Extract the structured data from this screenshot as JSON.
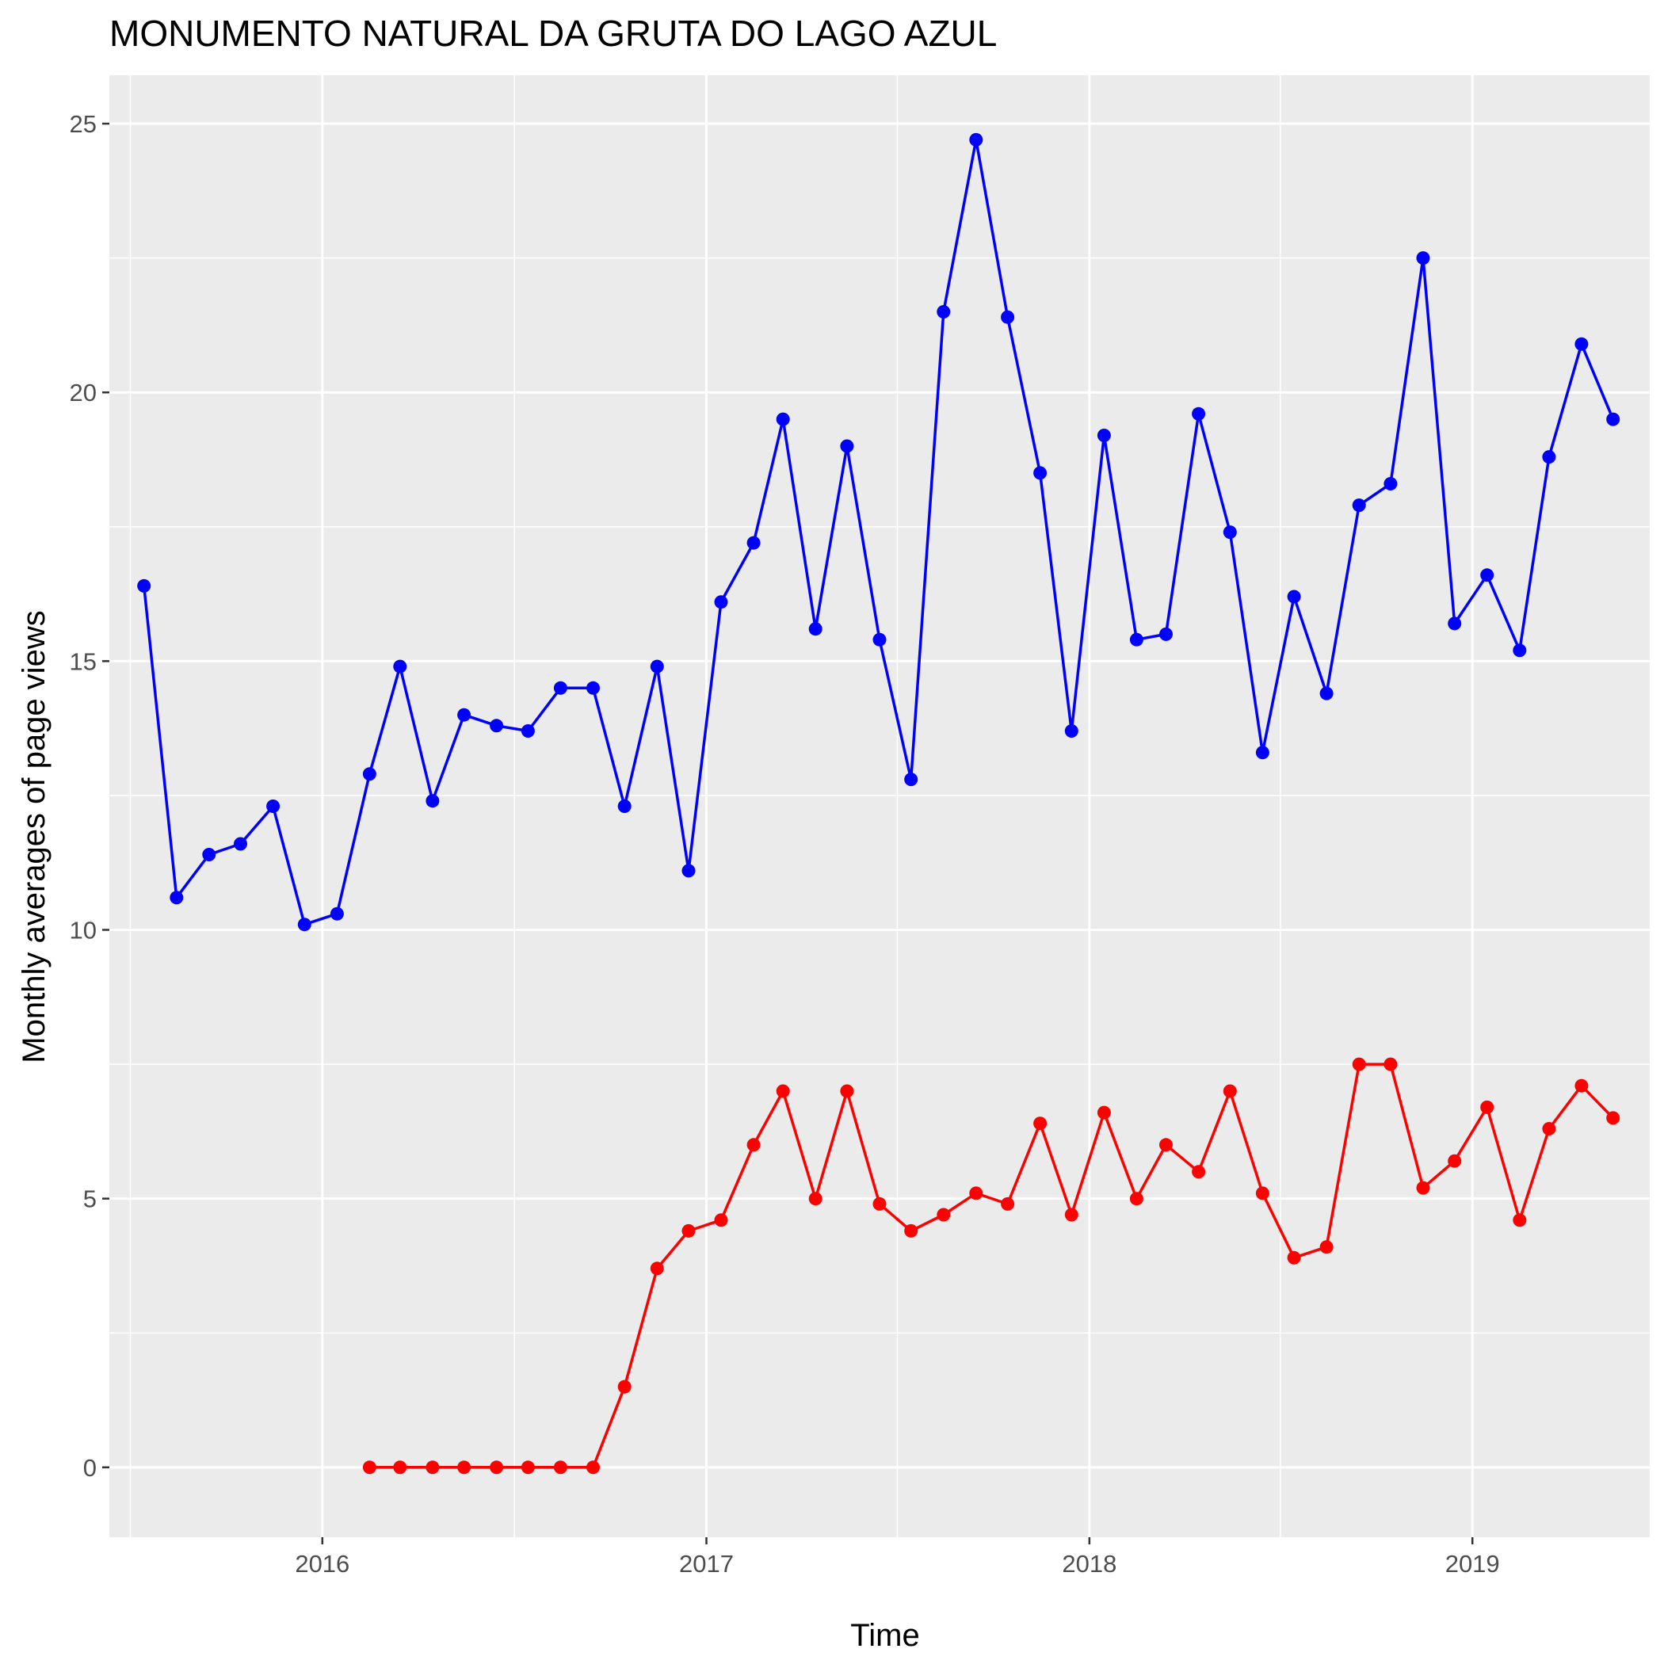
{
  "chart_data": {
    "type": "line",
    "title": "MONUMENTO NATURAL DA GRUTA DO LAGO AZUL",
    "xlabel": "Time",
    "ylabel": "Monthly averages of page views",
    "x_tick_labels": [
      "2016",
      "2017",
      "2018",
      "2019"
    ],
    "x_tick_years": [
      2016,
      2017,
      2018,
      2019
    ],
    "y_tick_labels": [
      "0",
      "5",
      "10",
      "15",
      "20",
      "25"
    ],
    "y_ticks": [
      0,
      5,
      10,
      15,
      20,
      25
    ],
    "xlim": [
      "2015-06-12",
      "2019-06-19"
    ],
    "ylim": [
      -1.3,
      25.9
    ],
    "grid": true,
    "legend": "none",
    "panel_background": "#ebebeb",
    "grid_color": "#ffffff",
    "series": [
      {
        "color": "#0000ff",
        "start": "2015-07",
        "values": [
          16.4,
          10.6,
          11.4,
          11.6,
          12.3,
          10.1,
          10.3,
          12.9,
          14.9,
          12.4,
          14.0,
          13.8,
          13.7,
          14.5,
          14.5,
          12.3,
          14.9,
          11.1,
          16.1,
          17.2,
          19.5,
          15.6,
          19.0,
          15.4,
          12.8,
          21.5,
          24.7,
          21.4,
          18.5,
          13.7,
          19.2,
          15.4,
          15.5,
          19.6,
          17.4,
          13.3,
          16.2,
          14.4,
          17.9,
          18.3,
          22.5,
          15.7,
          16.6,
          15.2,
          18.8,
          20.9,
          19.5
        ]
      },
      {
        "color": "#ff0000",
        "start": "2016-02",
        "values": [
          0,
          0,
          0,
          0,
          0,
          0,
          0,
          0,
          1.5,
          3.7,
          4.4,
          4.6,
          6.0,
          7.0,
          5.0,
          7.0,
          4.9,
          4.4,
          4.7,
          5.1,
          4.9,
          6.4,
          4.7,
          6.6,
          5.0,
          6.0,
          5.5,
          7.0,
          5.1,
          3.9,
          4.1,
          7.5,
          7.5,
          5.2,
          5.7,
          6.7,
          4.6,
          6.3,
          7.1,
          6.5
        ]
      }
    ]
  }
}
